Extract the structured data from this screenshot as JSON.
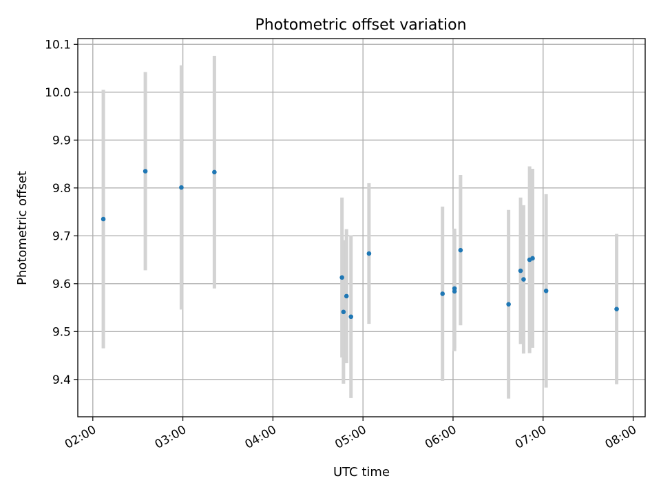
{
  "chart_data": {
    "type": "scatter",
    "title": "Photometric offset variation",
    "xlabel": "UTC time",
    "ylabel": "Photometric offset",
    "grid": true,
    "colors": {
      "point": "#1f77b4",
      "errorbar": "#d3d3d3"
    },
    "xlim": [
      "01:50",
      "08:08"
    ],
    "ylim": [
      9.322,
      10.112
    ],
    "xticks": [
      "02:00",
      "03:00",
      "04:00",
      "05:00",
      "06:00",
      "07:00",
      "08:00"
    ],
    "yticks": [
      "9.4",
      "9.5",
      "9.6",
      "9.7",
      "9.8",
      "9.9",
      "10.0",
      "10.1"
    ],
    "x_tick_rotation_deg": 30,
    "points": [
      {
        "x": "02:07",
        "y": 9.735,
        "err": 0.27
      },
      {
        "x": "02:35",
        "y": 9.835,
        "err": 0.207
      },
      {
        "x": "02:59",
        "y": 9.801,
        "err": 0.255
      },
      {
        "x": "03:21",
        "y": 9.833,
        "err": 0.243
      },
      {
        "x": "04:46",
        "y": 9.613,
        "err": 0.167
      },
      {
        "x": "04:47",
        "y": 9.541,
        "err": 0.15
      },
      {
        "x": "04:49",
        "y": 9.574,
        "err": 0.14
      },
      {
        "x": "04:52",
        "y": 9.531,
        "err": 0.17
      },
      {
        "x": "05:04",
        "y": 9.663,
        "err": 0.147
      },
      {
        "x": "05:53",
        "y": 9.579,
        "err": 0.182
      },
      {
        "x": "06:01",
        "y": 9.59,
        "err": 0.125
      },
      {
        "x": "06:01",
        "y": 9.584,
        "err": 0.125
      },
      {
        "x": "06:05",
        "y": 9.67,
        "err": 0.157
      },
      {
        "x": "06:37",
        "y": 9.557,
        "err": 0.197
      },
      {
        "x": "06:45",
        "y": 9.627,
        "err": 0.153
      },
      {
        "x": "06:47",
        "y": 9.609,
        "err": 0.155
      },
      {
        "x": "06:51",
        "y": 9.65,
        "err": 0.195
      },
      {
        "x": "06:53",
        "y": 9.653,
        "err": 0.187
      },
      {
        "x": "07:02",
        "y": 9.585,
        "err": 0.202
      },
      {
        "x": "07:49",
        "y": 9.547,
        "err": 0.157
      }
    ]
  }
}
